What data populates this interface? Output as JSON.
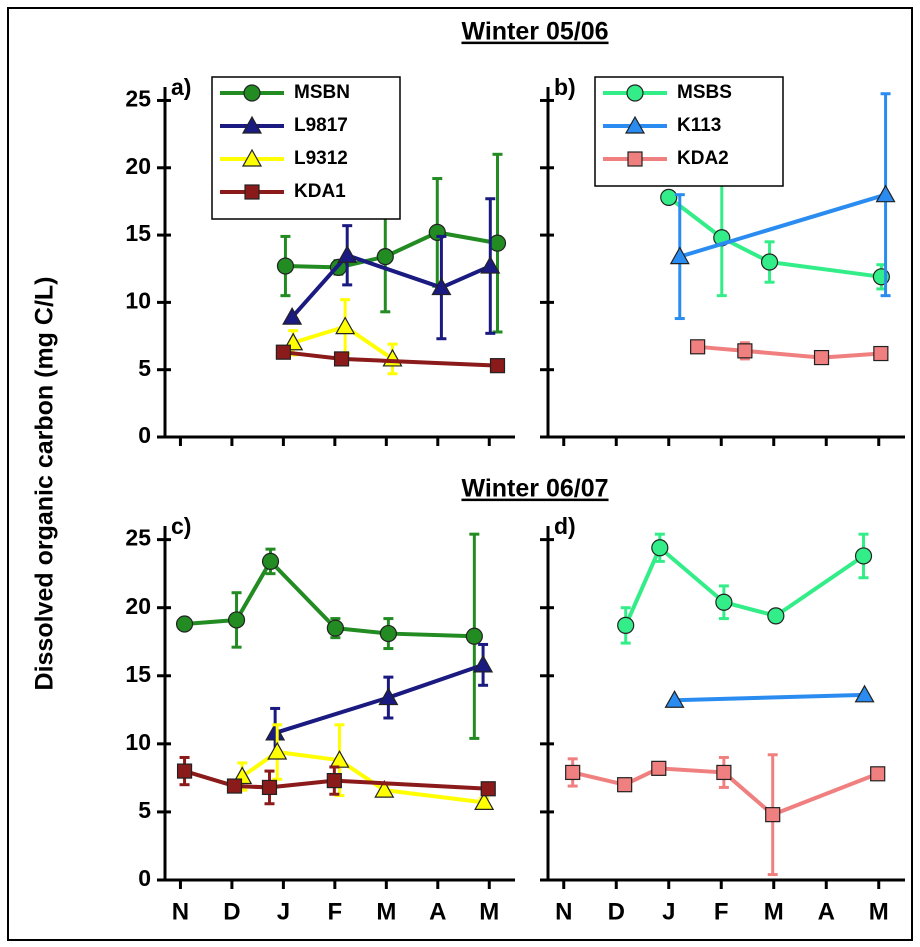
{
  "chart_data": [
    {
      "type": "line",
      "label": "a)",
      "title": "Winter 05/06",
      "ylabel": "Dissolved organic carbon (mg C/L)",
      "xlim": [
        -0.3,
        6.5
      ],
      "ylim": [
        0,
        26
      ],
      "yticks": [
        0,
        5,
        10,
        15,
        20,
        25
      ],
      "ytick_labels": true,
      "xticks": [
        {
          "value": 0,
          "label": "N"
        },
        {
          "value": 1,
          "label": "D"
        },
        {
          "value": 2,
          "label": "J"
        },
        {
          "value": 3,
          "label": "F"
        },
        {
          "value": 4,
          "label": "M"
        },
        {
          "value": 5,
          "label": "A"
        },
        {
          "value": 6,
          "label": "M"
        }
      ],
      "xtick_labels": false,
      "legend": "upper left",
      "series": [
        {
          "name": "MSBN",
          "color": "#228b22",
          "marker": "circle",
          "x": [
            2.04,
            3.07,
            3.98,
            4.99,
            6.16
          ],
          "values": [
            12.7,
            12.6,
            13.4,
            15.2,
            14.4
          ],
          "errors": [
            2.2,
            0.5,
            4.1,
            4.0,
            6.6
          ]
        },
        {
          "name": "L9817",
          "color": "#1a1a80",
          "marker": "triangle",
          "x": [
            2.17,
            3.24,
            5.07,
            6.02
          ],
          "values": [
            8.9,
            13.5,
            11.1,
            12.7
          ],
          "errors": [
            null,
            2.2,
            3.8,
            5.0
          ]
        },
        {
          "name": "L9312",
          "color": "#ffff00",
          "marker": "triangle",
          "x": [
            2.19,
            3.2,
            4.12
          ],
          "values": [
            7.0,
            8.2,
            5.8
          ],
          "errors": [
            0.9,
            2.0,
            1.1
          ]
        },
        {
          "name": "KDA1",
          "color": "#8b1a1a",
          "marker": "square",
          "x": [
            2.0,
            3.13,
            6.16
          ],
          "values": [
            6.3,
            5.8,
            5.3
          ],
          "errors": [
            0.4,
            0.3,
            0.3
          ]
        }
      ]
    },
    {
      "type": "line",
      "label": "b)",
      "xlim": [
        -0.3,
        6.5
      ],
      "ylim": [
        0,
        26
      ],
      "yticks": [
        0,
        5,
        10,
        15,
        20,
        25
      ],
      "ytick_labels": false,
      "xticks": [
        {
          "value": 0,
          "label": "N"
        },
        {
          "value": 1,
          "label": "D"
        },
        {
          "value": 2,
          "label": "J"
        },
        {
          "value": 3,
          "label": "F"
        },
        {
          "value": 4,
          "label": "M"
        },
        {
          "value": 5,
          "label": "A"
        },
        {
          "value": 6,
          "label": "M"
        }
      ],
      "xtick_labels": false,
      "legend": "upper left",
      "series": [
        {
          "name": "MSBS",
          "color": "#33ee88",
          "marker": "circle",
          "x": [
            2.0,
            3.01,
            3.92,
            6.05
          ],
          "values": [
            17.8,
            14.8,
            13.0,
            11.9
          ],
          "errors": [
            null,
            4.3,
            1.5,
            0.9
          ]
        },
        {
          "name": "K113",
          "color": "#2a8cf0",
          "marker": "triangle",
          "x": [
            2.21,
            6.13
          ],
          "values": [
            13.4,
            18.0
          ],
          "errors": [
            4.6,
            7.5
          ]
        },
        {
          "name": "KDA2",
          "color": "#f08080",
          "marker": "square",
          "x": [
            2.55,
            3.45,
            4.91,
            6.04
          ],
          "values": [
            6.7,
            6.4,
            5.9,
            6.2
          ],
          "errors": [
            0.4,
            0.6,
            0.3,
            0.4
          ]
        }
      ]
    },
    {
      "type": "line",
      "label": "c)",
      "title": "Winter 06/07",
      "xlim": [
        -0.3,
        6.5
      ],
      "ylim": [
        0,
        26
      ],
      "yticks": [
        0,
        5,
        10,
        15,
        20,
        25
      ],
      "ytick_labels": true,
      "xticks": [
        {
          "value": 0,
          "label": "N"
        },
        {
          "value": 1,
          "label": "D"
        },
        {
          "value": 2,
          "label": "J"
        },
        {
          "value": 3,
          "label": "F"
        },
        {
          "value": 4,
          "label": "M"
        },
        {
          "value": 5,
          "label": "A"
        },
        {
          "value": 6,
          "label": "M"
        }
      ],
      "xtick_labels": true,
      "legend": "none",
      "series": [
        {
          "color": "#228b22",
          "marker": "circle",
          "x": [
            0.08,
            1.09,
            1.75,
            3.01,
            4.04,
            5.71
          ],
          "values": [
            18.8,
            19.1,
            23.4,
            18.5,
            18.1,
            17.9
          ],
          "errors": [
            null,
            2.0,
            0.9,
            0.7,
            1.1,
            7.5
          ]
        },
        {
          "color": "#1a1a80",
          "marker": "triangle",
          "x": [
            1.84,
            4.04,
            5.88
          ],
          "values": [
            10.8,
            13.4,
            15.8
          ],
          "errors": [
            1.8,
            1.5,
            1.5
          ]
        },
        {
          "color": "#ffff00",
          "marker": "triangle",
          "x": [
            1.2,
            1.88,
            3.09,
            3.96,
            5.9
          ],
          "values": [
            7.6,
            9.4,
            8.8,
            6.6,
            5.7
          ],
          "errors": [
            1.0,
            2.0,
            2.6,
            0.3,
            0.3
          ]
        },
        {
          "color": "#8b1a1a",
          "marker": "square",
          "x": [
            0.08,
            1.05,
            1.73,
            2.99,
            5.98
          ],
          "values": [
            8.0,
            6.9,
            6.8,
            7.3,
            6.7
          ],
          "errors": [
            1.0,
            0.3,
            1.2,
            1.0,
            0.3
          ]
        }
      ]
    },
    {
      "type": "line",
      "label": "d)",
      "xlim": [
        -0.3,
        6.5
      ],
      "ylim": [
        0,
        26
      ],
      "yticks": [
        0,
        5,
        10,
        15,
        20,
        25
      ],
      "ytick_labels": false,
      "xticks": [
        {
          "value": 0,
          "label": "N"
        },
        {
          "value": 1,
          "label": "D"
        },
        {
          "value": 2,
          "label": "J"
        },
        {
          "value": 3,
          "label": "F"
        },
        {
          "value": 4,
          "label": "M"
        },
        {
          "value": 5,
          "label": "A"
        },
        {
          "value": 6,
          "label": "M"
        }
      ],
      "xtick_labels": true,
      "legend": "none",
      "series": [
        {
          "color": "#33ee88",
          "marker": "circle",
          "x": [
            1.18,
            1.83,
            3.05,
            4.04,
            5.71
          ],
          "values": [
            18.7,
            24.4,
            20.4,
            19.4,
            23.8
          ],
          "errors": [
            1.3,
            1.0,
            1.2,
            0.3,
            1.6
          ]
        },
        {
          "color": "#2a8cf0",
          "marker": "triangle",
          "x": [
            2.11,
            5.73
          ],
          "values": [
            13.2,
            13.6
          ],
          "errors": [
            null,
            null
          ]
        },
        {
          "color": "#f08080",
          "marker": "square",
          "x": [
            0.17,
            1.16,
            1.81,
            3.05,
            3.98,
            5.98
          ],
          "values": [
            7.9,
            7.0,
            8.2,
            7.9,
            4.8,
            7.8
          ],
          "errors": [
            1.0,
            0.3,
            0.3,
            1.1,
            4.4,
            0.3
          ]
        }
      ]
    }
  ]
}
